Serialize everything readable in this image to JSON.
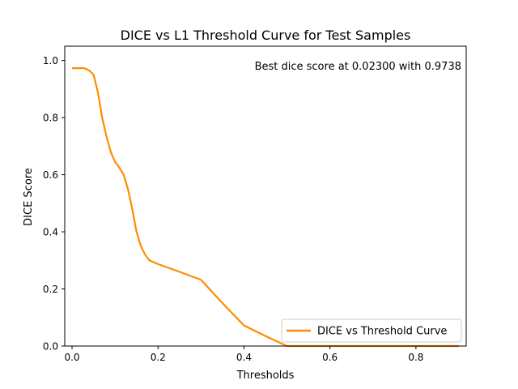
{
  "chart_data": {
    "type": "line",
    "title": "DICE vs L1 Threshold Curve for Test Samples",
    "xlabel": "Thresholds",
    "ylabel": "DICE Score",
    "xlim": [
      -0.017,
      0.917
    ],
    "ylim": [
      0.0,
      1.05
    ],
    "xticks": [
      0.0,
      0.2,
      0.4,
      0.6,
      0.8
    ],
    "xtick_labels": [
      "0.0",
      "0.2",
      "0.4",
      "0.6",
      "0.8"
    ],
    "yticks": [
      0.0,
      0.2,
      0.4,
      0.6,
      0.8,
      1.0
    ],
    "ytick_labels": [
      "0.0",
      "0.2",
      "0.4",
      "0.6",
      "0.8",
      "1.0"
    ],
    "grid": false,
    "legend_position": "bottom-right",
    "annotation": "Best dice score at 0.02300 with 0.9738",
    "series": [
      {
        "name": "DICE vs Threshold Curve",
        "color": "#ff8c00",
        "x": [
          0.0,
          0.01,
          0.02,
          0.023,
          0.03,
          0.04,
          0.05,
          0.06,
          0.07,
          0.08,
          0.09,
          0.1,
          0.11,
          0.12,
          0.13,
          0.14,
          0.15,
          0.16,
          0.17,
          0.18,
          0.2,
          0.25,
          0.3,
          0.35,
          0.4,
          0.45,
          0.5,
          0.6,
          0.7,
          0.8,
          0.9
        ],
        "y": [
          0.973,
          0.973,
          0.973,
          0.9738,
          0.972,
          0.965,
          0.95,
          0.89,
          0.8,
          0.735,
          0.68,
          0.645,
          0.625,
          0.6,
          0.55,
          0.48,
          0.4,
          0.35,
          0.32,
          0.3,
          0.287,
          0.26,
          0.232,
          0.15,
          0.072,
          0.035,
          0.0,
          0.0,
          0.0,
          0.0,
          0.0
        ]
      }
    ]
  }
}
